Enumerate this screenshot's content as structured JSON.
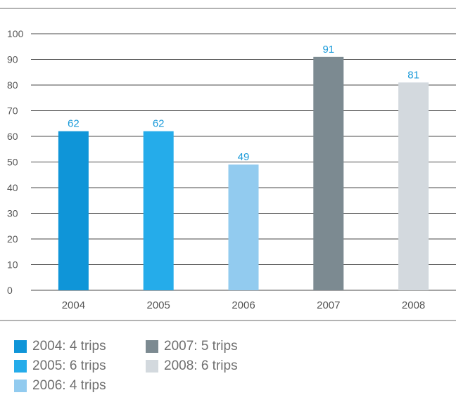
{
  "chart_data": {
    "type": "bar",
    "categories": [
      "2004",
      "2005",
      "2006",
      "2007",
      "2008"
    ],
    "values": [
      62,
      62,
      49,
      91,
      81
    ],
    "data_labels": [
      "62",
      "62",
      "49",
      "91",
      "81"
    ],
    "ylim": [
      0,
      100
    ],
    "yticks": [
      0,
      10,
      20,
      30,
      40,
      50,
      60,
      70,
      80,
      90,
      100
    ],
    "grid": true,
    "legend_position": "bottom",
    "colors": [
      "#0f95d8",
      "#25acea",
      "#92cbef",
      "#7c8a91",
      "#d3d9de"
    ],
    "label_color": "#1a9ad9",
    "legend": [
      {
        "label": "2004: 4 trips",
        "color": "#0f95d8"
      },
      {
        "label": "2005: 6 trips",
        "color": "#25acea"
      },
      {
        "label": "2006: 4 trips",
        "color": "#92cbef"
      },
      {
        "label": "2007: 5 trips",
        "color": "#7c8a91"
      },
      {
        "label": "2008: 6 trips",
        "color": "#d3d9de"
      }
    ]
  }
}
